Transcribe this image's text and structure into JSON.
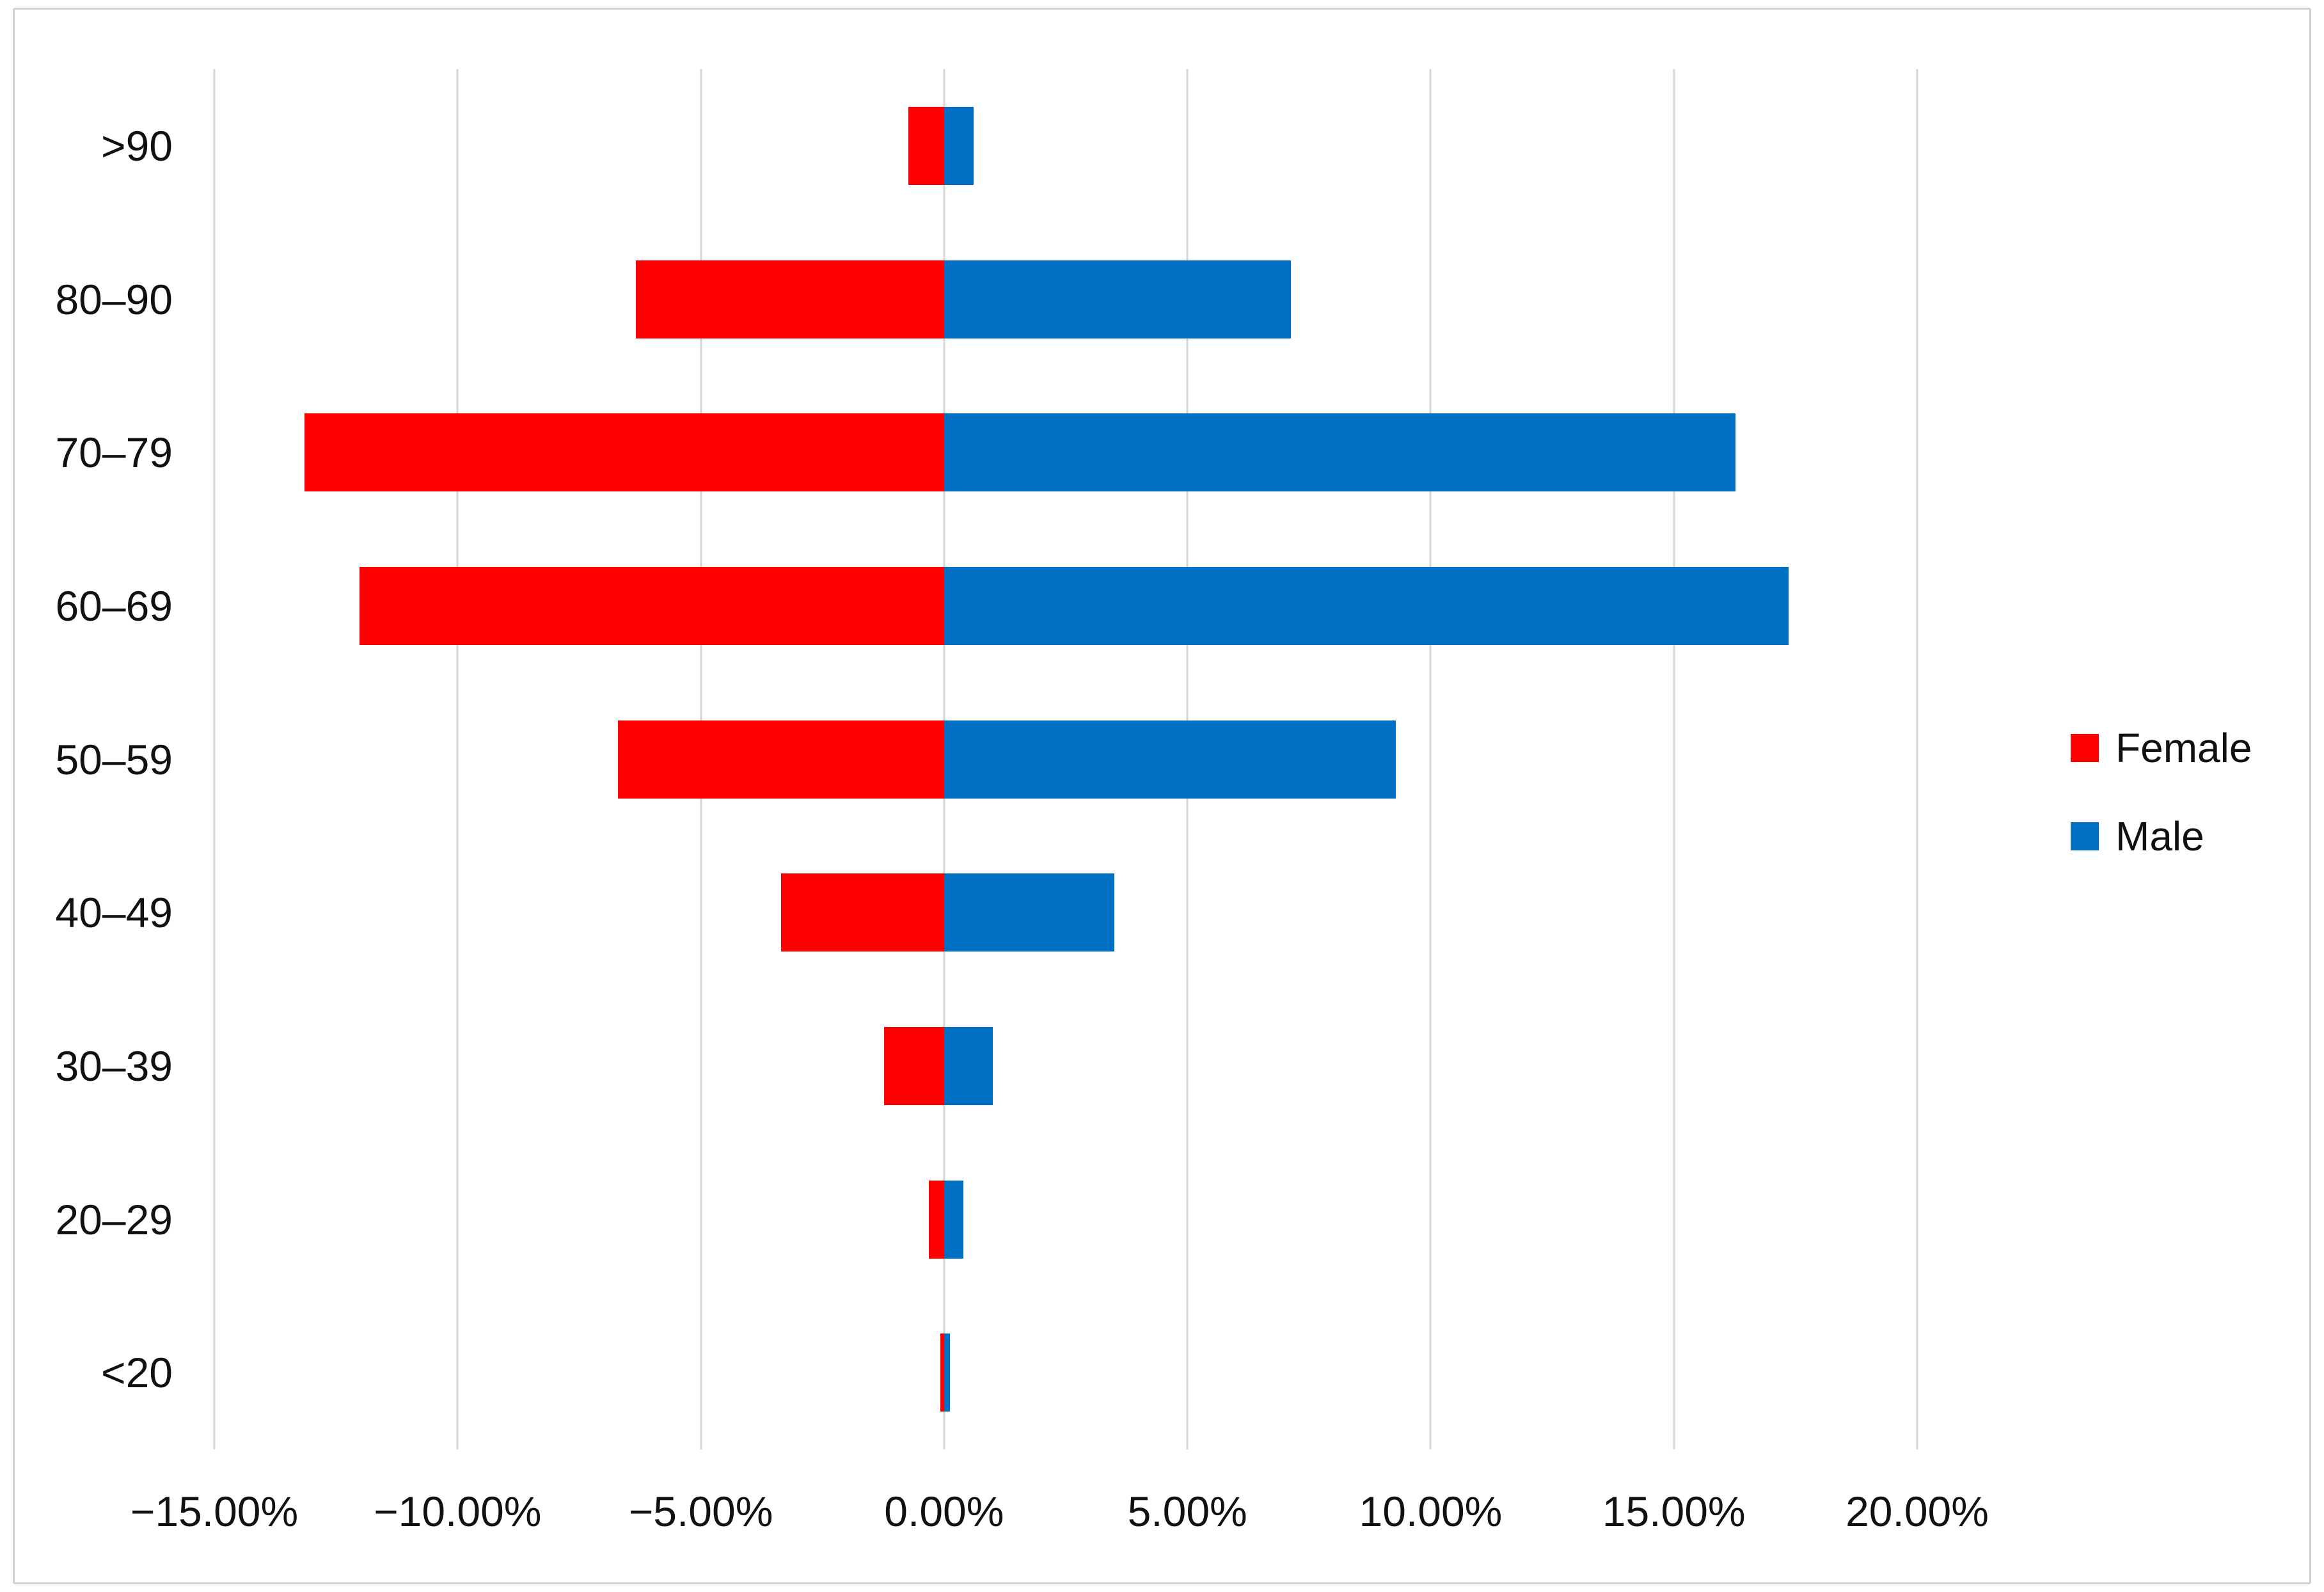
{
  "colors": {
    "background": "#ffffff",
    "frame": "#cfcfcf",
    "grid": "#d6d6d6",
    "text": "#111111",
    "female": "#ff0000",
    "male": "#0071c2"
  },
  "chart_data": {
    "type": "bar",
    "subtype": "population-pyramid",
    "orientation": "horizontal",
    "title": "",
    "xlabel": "",
    "ylabel": "",
    "grid": "vertical-only",
    "legend_position": "right-middle",
    "xlim": [
      -15,
      20
    ],
    "categories_top_to_bottom": [
      ">90",
      "80–90",
      "70–79",
      "60–69",
      "50–59",
      "40–49",
      "30–39",
      "20–29",
      "<20"
    ],
    "series": [
      {
        "name": "Female",
        "color": "#ff0000",
        "side": "left",
        "values_pct": [
          -0.74,
          -6.34,
          -13.14,
          -12.02,
          -6.7,
          -3.35,
          -1.24,
          -0.32,
          -0.08
        ]
      },
      {
        "name": "Male",
        "color": "#0071c2",
        "side": "right",
        "values_pct": [
          0.61,
          7.13,
          16.27,
          17.36,
          9.28,
          3.5,
          1.0,
          0.4,
          0.12
        ]
      }
    ],
    "x_ticks": [
      {
        "value": -15,
        "label": "−15.00%"
      },
      {
        "value": -10,
        "label": "−10.00%"
      },
      {
        "value": -5,
        "label": "−5.00%"
      },
      {
        "value": 0,
        "label": "0.00%"
      },
      {
        "value": 5,
        "label": "5.00%"
      },
      {
        "value": 10,
        "label": "10.00%"
      },
      {
        "value": 15,
        "label": "15.00%"
      },
      {
        "value": 20,
        "label": "20.00%"
      }
    ]
  },
  "legend": {
    "items": [
      {
        "label": "Female",
        "color": "#ff0000"
      },
      {
        "label": "Male",
        "color": "#0071c2"
      }
    ]
  }
}
